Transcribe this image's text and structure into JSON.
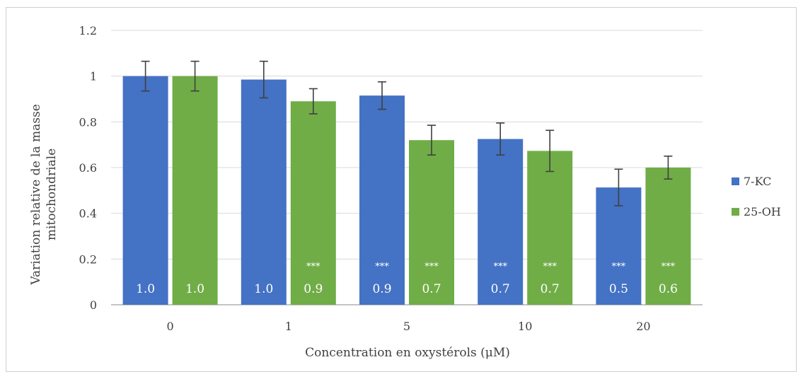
{
  "chart_data": {
    "type": "bar",
    "title": "",
    "xlabel": "Concentration en oxystérols (μM)",
    "ylabel_lines": [
      "Variation relative de la masse",
      "mitochondriale"
    ],
    "categories": [
      "0",
      "1",
      "5",
      "10",
      "20"
    ],
    "ylim": [
      0,
      1.2
    ],
    "yticks": [
      "0",
      "0.2",
      "0.4",
      "0.6",
      "0.8",
      "1",
      "1.2"
    ],
    "grid": true,
    "legend_position": "right",
    "series": [
      {
        "name": "7-KC",
        "color": "#4472c4",
        "values": [
          1.0,
          0.985,
          0.915,
          0.725,
          0.513
        ],
        "errors": [
          0.065,
          0.08,
          0.06,
          0.07,
          0.08
        ],
        "labels": [
          "1.0",
          "1.0",
          "0.9",
          "0.7",
          "0.5"
        ],
        "significance": [
          "",
          "",
          "***",
          "***",
          "***"
        ]
      },
      {
        "name": "25-OH",
        "color": "#70ad47",
        "values": [
          1.0,
          0.89,
          0.72,
          0.673,
          0.6
        ],
        "errors": [
          0.065,
          0.055,
          0.065,
          0.09,
          0.05
        ],
        "labels": [
          "1.0",
          "0.9",
          "0.7",
          "0.7",
          "0.6"
        ],
        "significance": [
          "",
          "***",
          "***",
          "***",
          "***"
        ]
      }
    ]
  }
}
